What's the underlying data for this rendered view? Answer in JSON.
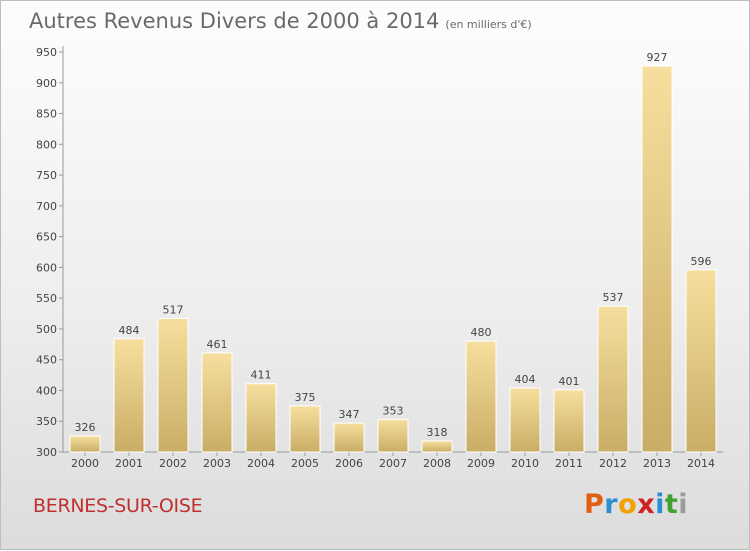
{
  "header": {
    "title": "Autres Revenus Divers de 2000 à 2014",
    "unit": "(en milliers d'€)"
  },
  "footer": {
    "city": "BERNES-SUR-OISE",
    "logo_letters": [
      "P",
      "r",
      "o",
      "x",
      "i",
      "t",
      "i"
    ],
    "logo_colors": [
      "#e06010",
      "#2a8fd0",
      "#f0a000",
      "#d02020",
      "#2a8fd0",
      "#40a030",
      "#9a9a9a"
    ]
  },
  "chart_data": {
    "type": "bar",
    "categories": [
      "2000",
      "2001",
      "2002",
      "2003",
      "2004",
      "2005",
      "2006",
      "2007",
      "2008",
      "2009",
      "2010",
      "2011",
      "2012",
      "2013",
      "2014"
    ],
    "values": [
      326,
      484,
      517,
      461,
      411,
      375,
      347,
      353,
      318,
      480,
      404,
      401,
      537,
      927,
      596
    ],
    "title": "Autres Revenus Divers de 2000 à 2014",
    "xlabel": "",
    "ylabel": "",
    "ylim": [
      300,
      950
    ],
    "yticks": [
      300,
      350,
      400,
      450,
      500,
      550,
      600,
      650,
      700,
      750,
      800,
      850,
      900,
      950
    ],
    "grid": false,
    "bar_color": "#e8cc82"
  }
}
